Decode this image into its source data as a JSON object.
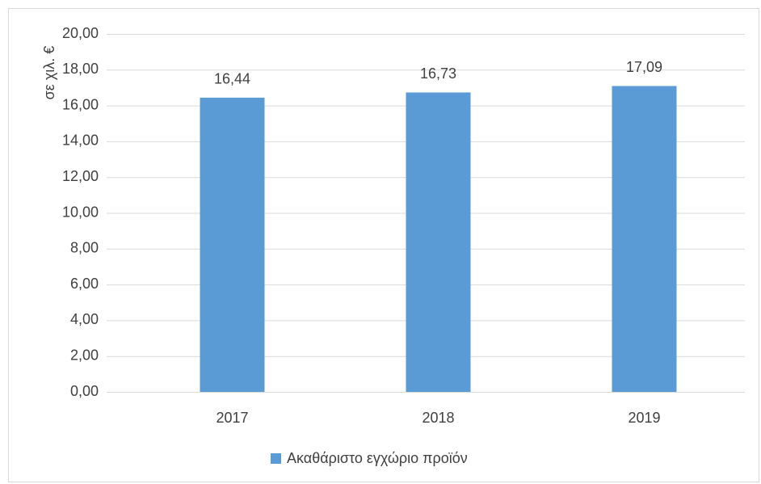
{
  "chart_data": {
    "type": "bar",
    "y_label": "σε χιλ. €",
    "categories": [
      "2017",
      "2018",
      "2019"
    ],
    "series": [
      {
        "name": "Ακαθάριστο εγχώριο προϊόν",
        "color": "#5b9bd5",
        "values": [
          16.44,
          16.73,
          17.09
        ],
        "value_labels": [
          "16,44",
          "16,73",
          "17,09"
        ]
      }
    ],
    "ylim": [
      0,
      20
    ],
    "yticks": [
      {
        "value": 0,
        "label": "0,00"
      },
      {
        "value": 2,
        "label": "2,00"
      },
      {
        "value": 4,
        "label": "4,00"
      },
      {
        "value": 6,
        "label": "6,00"
      },
      {
        "value": 8,
        "label": "8,00"
      },
      {
        "value": 10,
        "label": "10,00"
      },
      {
        "value": 12,
        "label": "12,00"
      },
      {
        "value": 14,
        "label": "14,00"
      },
      {
        "value": 16,
        "label": "16,00"
      },
      {
        "value": 18,
        "label": "18,00"
      },
      {
        "value": 20,
        "label": "20,00"
      }
    ],
    "grid": true,
    "legend": "bottom"
  }
}
